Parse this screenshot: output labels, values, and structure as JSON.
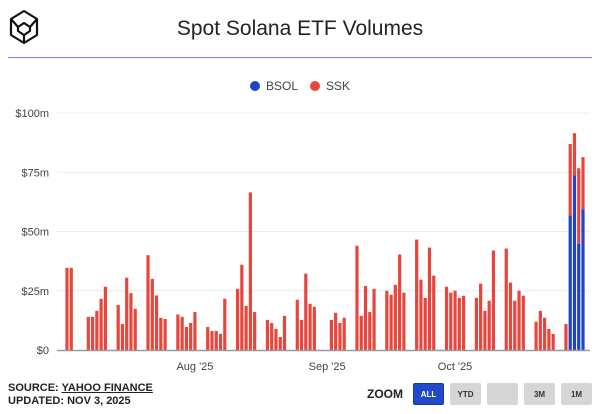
{
  "title": "Spot Solana ETF Volumes",
  "footer": {
    "source_label": "SOURCE: ",
    "source_link": "YAHOO FINANCE",
    "updated": "UPDATED: NOV 3, 2025"
  },
  "zoom": {
    "label": "ZOOM",
    "buttons": [
      "ALL",
      "YTD",
      "",
      "3M",
      "1M"
    ],
    "active": "ALL"
  },
  "colors": {
    "BSOL": "#1f44c8",
    "SSK": "#e8453c",
    "rule": "#9b6bf0"
  },
  "chart_data": {
    "type": "bar",
    "stacked": true,
    "title": "Spot Solana ETF Volumes",
    "xlabel": "",
    "ylabel": "",
    "ylim": [
      0,
      100
    ],
    "y_unit": "$m",
    "y_ticks": [
      0,
      25,
      50,
      75,
      100
    ],
    "y_tick_labels": [
      "$0",
      "$25m",
      "$50m",
      "$75m",
      "$100m"
    ],
    "x_tick_dates": [
      "2025-08-01",
      "2025-09-01",
      "2025-10-01"
    ],
    "x_tick_labels": [
      "Aug '25",
      "Sep '25",
      "Oct '25"
    ],
    "x_range": [
      "2025-07-02",
      "2025-10-31"
    ],
    "grid": true,
    "legend_placement": "top-center",
    "legend": [
      "BSOL",
      "SSK"
    ],
    "dates": [
      "2025-07-02",
      "2025-07-03",
      "2025-07-07",
      "2025-07-08",
      "2025-07-09",
      "2025-07-10",
      "2025-07-11",
      "2025-07-14",
      "2025-07-15",
      "2025-07-16",
      "2025-07-17",
      "2025-07-18",
      "2025-07-21",
      "2025-07-22",
      "2025-07-23",
      "2025-07-24",
      "2025-07-25",
      "2025-07-28",
      "2025-07-29",
      "2025-07-30",
      "2025-07-31",
      "2025-08-01",
      "2025-08-04",
      "2025-08-05",
      "2025-08-06",
      "2025-08-07",
      "2025-08-08",
      "2025-08-11",
      "2025-08-12",
      "2025-08-13",
      "2025-08-14",
      "2025-08-15",
      "2025-08-18",
      "2025-08-19",
      "2025-08-20",
      "2025-08-21",
      "2025-08-22",
      "2025-08-25",
      "2025-08-26",
      "2025-08-27",
      "2025-08-28",
      "2025-08-29",
      "2025-09-02",
      "2025-09-03",
      "2025-09-04",
      "2025-09-05",
      "2025-09-08",
      "2025-09-09",
      "2025-09-10",
      "2025-09-11",
      "2025-09-12",
      "2025-09-15",
      "2025-09-16",
      "2025-09-17",
      "2025-09-18",
      "2025-09-19",
      "2025-09-22",
      "2025-09-23",
      "2025-09-24",
      "2025-09-25",
      "2025-09-26",
      "2025-09-29",
      "2025-09-30",
      "2025-10-01",
      "2025-10-02",
      "2025-10-03",
      "2025-10-06",
      "2025-10-07",
      "2025-10-08",
      "2025-10-09",
      "2025-10-10",
      "2025-10-13",
      "2025-10-14",
      "2025-10-15",
      "2025-10-16",
      "2025-10-17",
      "2025-10-20",
      "2025-10-21",
      "2025-10-22",
      "2025-10-23",
      "2025-10-24",
      "2025-10-27",
      "2025-10-28",
      "2025-10-29",
      "2025-10-30",
      "2025-10-31"
    ],
    "series": [
      {
        "name": "BSOL",
        "values": [
          0,
          0,
          0,
          0,
          0,
          0,
          0,
          0,
          0,
          0,
          0,
          0,
          0,
          0,
          0,
          0,
          0,
          0,
          0,
          0,
          0,
          0,
          0,
          0,
          0,
          0,
          0,
          0,
          0,
          0,
          0,
          0,
          0,
          0,
          0,
          0,
          0,
          0,
          0,
          0,
          0,
          0,
          0,
          0,
          0,
          0,
          0,
          0,
          0,
          0,
          0,
          0,
          0,
          0,
          0,
          0,
          0,
          0,
          0,
          0,
          0,
          0,
          0,
          0,
          0,
          0,
          0,
          0,
          0,
          0,
          0,
          0,
          0,
          0,
          0,
          0,
          0,
          0,
          0,
          0,
          0,
          0,
          56.8,
          73.7,
          44.9,
          59.3
        ]
      },
      {
        "name": "SSK",
        "values": [
          34.7,
          34.7,
          14,
          14,
          16.5,
          21.6,
          26.7,
          19,
          11,
          30.5,
          24,
          17.4,
          40,
          30,
          23,
          13.6,
          13.1,
          15,
          14,
          9.7,
          11.4,
          16,
          9.7,
          8,
          8,
          6.8,
          21.6,
          25.8,
          36,
          18.6,
          66.5,
          16,
          12.7,
          11.4,
          8.9,
          5.5,
          14.4,
          21.2,
          12.7,
          32.2,
          19.5,
          18.2,
          12.7,
          15.7,
          11.4,
          13.6,
          44,
          14.4,
          27,
          16,
          25.8,
          25,
          23.3,
          27.5,
          40.3,
          24.2,
          46.6,
          29.7,
          22,
          43.2,
          31.4,
          26.7,
          24.2,
          25,
          22,
          22.9,
          22,
          28,
          16.5,
          20.8,
          42,
          42.8,
          28.4,
          20.8,
          25,
          22.9,
          11.9,
          16.5,
          13.6,
          8.9,
          6.8,
          11,
          30.1,
          17.8,
          31.8,
          22.1
        ]
      }
    ]
  }
}
